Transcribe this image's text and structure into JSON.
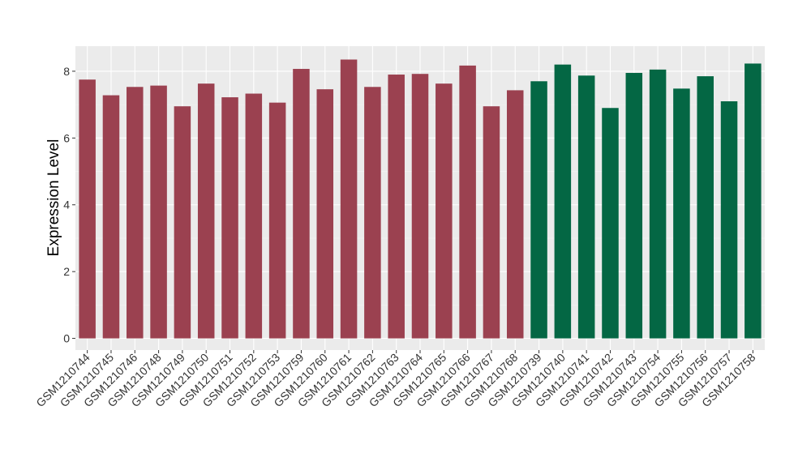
{
  "chart_data": {
    "type": "bar",
    "ylabel": "Expression Level",
    "xlabel": "",
    "ylim": [
      -0.35,
      8.75
    ],
    "yticks": [
      0,
      2,
      4,
      6,
      8
    ],
    "grid": true,
    "panel_background": "#EBEBEB",
    "categories": [
      "GSM1210744",
      "GSM1210745",
      "GSM1210746",
      "GSM1210748",
      "GSM1210749",
      "GSM1210750",
      "GSM1210751",
      "GSM1210752",
      "GSM1210753",
      "GSM1210759",
      "GSM1210760",
      "GSM1210761",
      "GSM1210762",
      "GSM1210763",
      "GSM1210764",
      "GSM1210765",
      "GSM1210766",
      "GSM1210767",
      "GSM1210768",
      "GSM1210739",
      "GSM1210740",
      "GSM1210741",
      "GSM1210742",
      "GSM1210743",
      "GSM1210754",
      "GSM1210755",
      "GSM1210756",
      "GSM1210757",
      "GSM1210758"
    ],
    "values": [
      7.75,
      7.28,
      7.53,
      7.57,
      6.95,
      7.63,
      7.22,
      7.33,
      7.06,
      8.07,
      7.46,
      8.35,
      7.53,
      7.9,
      7.92,
      7.63,
      8.17,
      6.95,
      7.43,
      7.7,
      8.2,
      7.87,
      6.9,
      7.95,
      8.05,
      7.48,
      7.85,
      7.1,
      8.23
    ],
    "bar_colors": [
      "#9B4150",
      "#9B4150",
      "#9B4150",
      "#9B4150",
      "#9B4150",
      "#9B4150",
      "#9B4150",
      "#9B4150",
      "#9B4150",
      "#9B4150",
      "#9B4150",
      "#9B4150",
      "#9B4150",
      "#9B4150",
      "#9B4150",
      "#9B4150",
      "#9B4150",
      "#9B4150",
      "#9B4150",
      "#046744",
      "#046744",
      "#046744",
      "#046744",
      "#046744",
      "#046744",
      "#046744",
      "#046744",
      "#046744",
      "#046744"
    ]
  }
}
